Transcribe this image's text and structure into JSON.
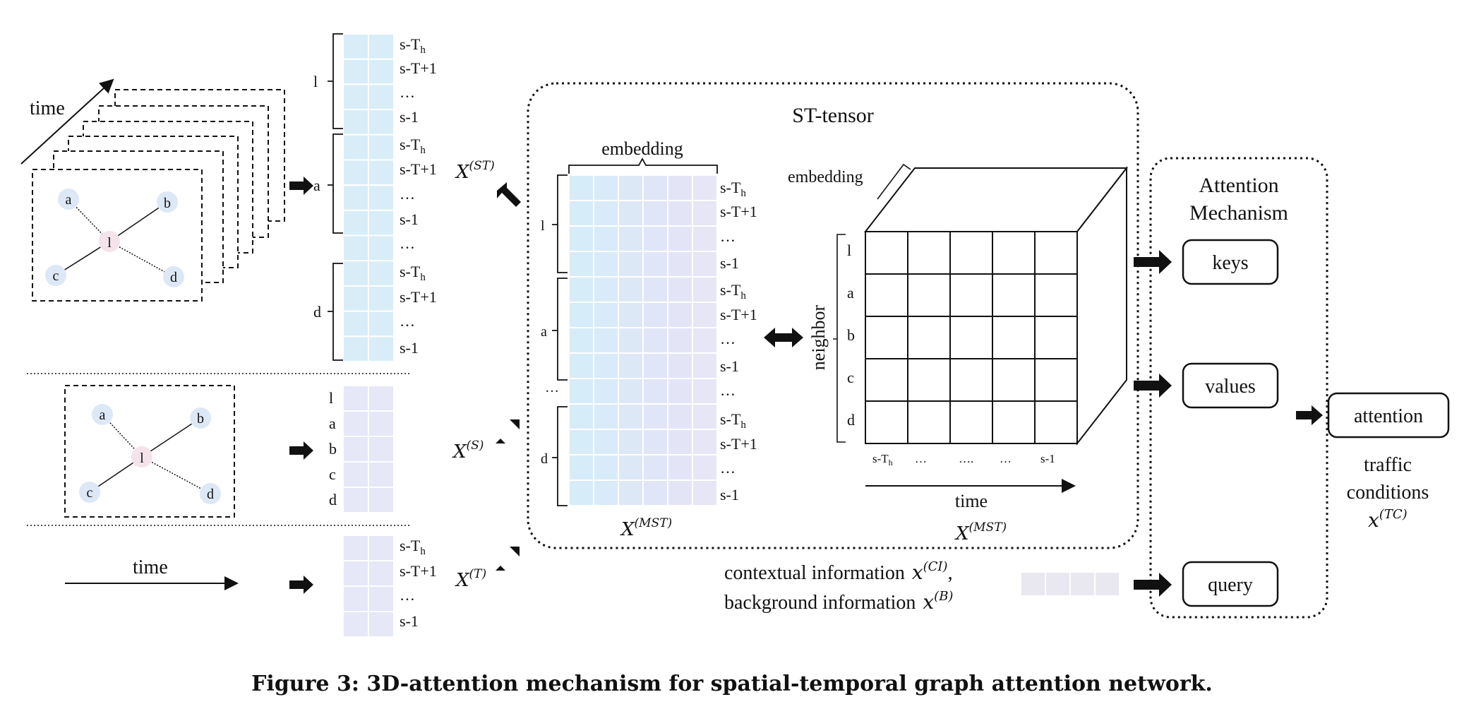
{
  "caption": "Figure 3: 3D-attention mechanism for spatial-temporal graph attention network.",
  "graph": {
    "center": "l",
    "neighbors": [
      "a",
      "b",
      "c",
      "d"
    ],
    "time_label": "time"
  },
  "spatial_temporal_column": {
    "groups": [
      {
        "node": "l",
        "rows": [
          "s-T",
          "s-T+1",
          "…",
          "s-1"
        ]
      },
      {
        "node": "a",
        "rows": [
          "s-T",
          "s-T+1",
          "…",
          "s-1"
        ]
      },
      {
        "node": "d",
        "rows": [
          "s-T",
          "s-T+1",
          "…",
          "s-1"
        ]
      }
    ],
    "gap_ellipsis": "…",
    "subscript": "h",
    "label": "X",
    "label_sup": "(ST)"
  },
  "spatial_column": {
    "rows": [
      "l",
      "a",
      "b",
      "c",
      "d"
    ],
    "label": "X",
    "label_sup": "(S)"
  },
  "temporal_column": {
    "rows": [
      "s-T",
      "s-T+1",
      "…",
      "s-1"
    ],
    "time_label": "time",
    "label": "X",
    "label_sup": "(T)"
  },
  "st_tensor": {
    "title": "ST-tensor",
    "matrix": {
      "embedding_label": "embedding",
      "groups": [
        {
          "node": "l",
          "rows": [
            "s-T",
            "s-T+1",
            "…",
            "s-1"
          ]
        },
        {
          "node": "a",
          "rows": [
            "s-T",
            "s-T+1",
            "…",
            "s-1"
          ]
        },
        {
          "node": "d",
          "rows": [
            "s-T",
            "s-T+1",
            "…",
            "s-1"
          ]
        }
      ],
      "gap_ellipsis": "…",
      "label": "X",
      "label_sup": "(MST)"
    },
    "cube": {
      "embedding_label": "embedding",
      "neighbor_label": "neighbor",
      "neighbor_rows": [
        "l",
        "a",
        "b",
        "c",
        "d"
      ],
      "time_ticks": [
        "s-T",
        "…",
        "….",
        "…",
        "s-1"
      ],
      "time_label": "time",
      "label": "X",
      "label_sup": "(MST)"
    }
  },
  "context": {
    "contextual": "contextual information",
    "contextual_sup": "(CI)",
    "background": "background information",
    "background_sup": "(B)",
    "var": "x"
  },
  "attention": {
    "title_line1": "Attention",
    "title_line2": "Mechanism",
    "keys": "keys",
    "values": "values",
    "query": "query",
    "output": "attention",
    "output_desc_line1": "traffic",
    "output_desc_line2": "conditions",
    "output_var": "x",
    "output_sup": "(TC)"
  },
  "colors": {
    "cell_blue": "#d8edf8",
    "cell_lavender": "#e6e7f7",
    "cell_grey": "#e9e7ef",
    "node_blue": "#dde8f6",
    "node_pink": "#f4e3ea",
    "stroke": "#111111"
  }
}
